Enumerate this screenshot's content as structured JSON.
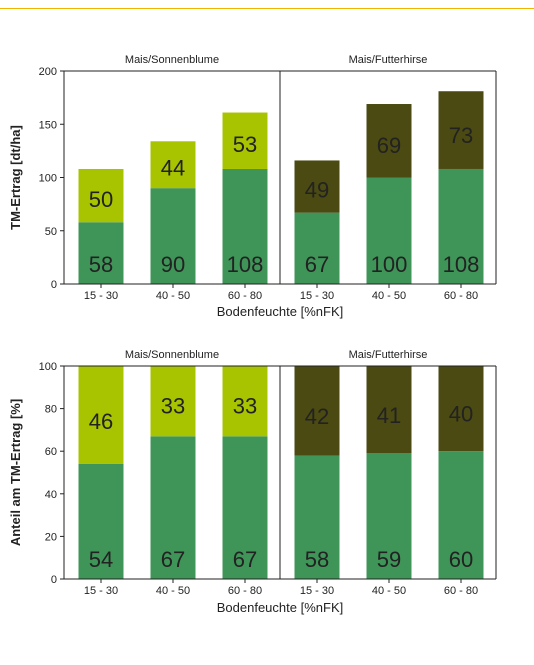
{
  "chart_data": [
    {
      "type": "bar",
      "stacked": true,
      "ylabel": "TM-Ertrag [dt/ha]",
      "xlabel": "Bodenfeuchte [%nFK]",
      "ylim": [
        0,
        200
      ],
      "yticks": [
        "0",
        "50",
        "100",
        "150",
        "200"
      ],
      "panels": [
        {
          "title": "Mais/Sonnenblume",
          "categories": [
            "15 - 30",
            "40 - 50",
            "60 - 80"
          ],
          "series": [
            {
              "values": [
                58,
                90,
                108
              ],
              "labels": [
                "58",
                "90",
                "108"
              ],
              "color": "#3f9458"
            },
            {
              "values": [
                50,
                44,
                53
              ],
              "labels": [
                "50",
                "44",
                "53"
              ],
              "color": "#a8c400"
            }
          ]
        },
        {
          "title": "Mais/Futterhirse",
          "categories": [
            "15 - 30",
            "40 - 50",
            "60 - 80"
          ],
          "series": [
            {
              "values": [
                67,
                100,
                108
              ],
              "labels": [
                "67",
                "100",
                "108"
              ],
              "color": "#3f9458"
            },
            {
              "values": [
                49,
                69,
                73
              ],
              "labels": [
                "49",
                "69",
                "73"
              ],
              "color": "#4a4a12"
            }
          ]
        }
      ]
    },
    {
      "type": "bar",
      "stacked": true,
      "ylabel": "Anteil am TM-Ertrag [%]",
      "xlabel": "Bodenfeuchte [%nFK]",
      "ylim": [
        0,
        100
      ],
      "yticks": [
        "0",
        "20",
        "40",
        "60",
        "80",
        "100"
      ],
      "panels": [
        {
          "title": "Mais/Sonnenblume",
          "categories": [
            "15 - 30",
            "40 - 50",
            "60 - 80"
          ],
          "series": [
            {
              "values": [
                54,
                67,
                67
              ],
              "labels": [
                "54",
                "67",
                "67"
              ],
              "color": "#3f9458"
            },
            {
              "values": [
                46,
                33,
                33
              ],
              "labels": [
                "46",
                "33",
                "33"
              ],
              "color": "#a8c400"
            }
          ]
        },
        {
          "title": "Mais/Futterhirse",
          "categories": [
            "15 - 30",
            "40 - 50",
            "60 - 80"
          ],
          "series": [
            {
              "values": [
                58,
                59,
                60
              ],
              "labels": [
                "58",
                "59",
                "60"
              ],
              "color": "#3f9458"
            },
            {
              "values": [
                42,
                41,
                40
              ],
              "labels": [
                "42",
                "41",
                "40"
              ],
              "color": "#4a4a12"
            }
          ]
        }
      ]
    }
  ]
}
